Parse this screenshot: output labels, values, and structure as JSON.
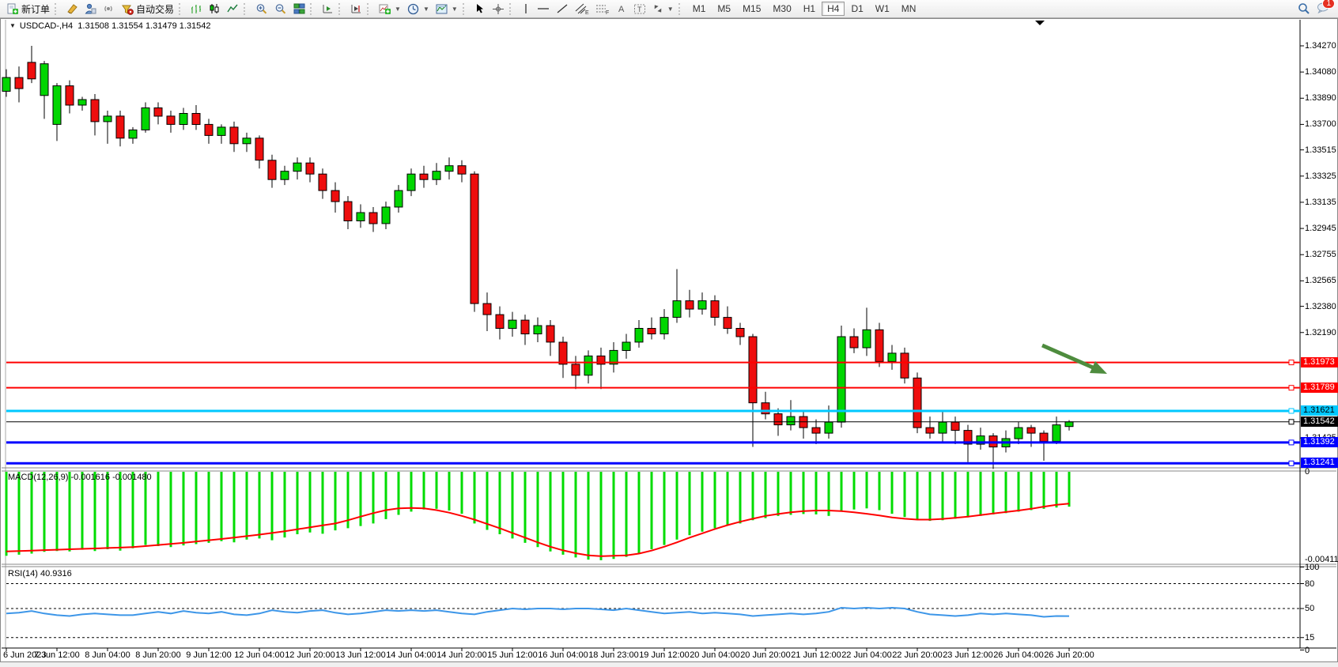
{
  "toolbar": {
    "new_order_label": "新订单",
    "algo_trading_label": "自动交易",
    "timeframes": {
      "items": [
        "M1",
        "M5",
        "M15",
        "M30",
        "H1",
        "H4",
        "D1",
        "W1",
        "MN"
      ],
      "active": "H4"
    },
    "notification_count": "1"
  },
  "chart": {
    "title": {
      "symbol_period": "USDCAD-,H4",
      "open": "1.31508",
      "high": "1.31554",
      "low": "1.31479",
      "close": "1.31542"
    },
    "price_axis_ticks": [
      "1.34270",
      "1.34080",
      "1.33890",
      "1.33700",
      "1.33515",
      "1.33325",
      "1.33135",
      "1.32945",
      "1.32755",
      "1.32565",
      "1.32380",
      "1.32190",
      "1.31425"
    ],
    "levels": [
      {
        "label": "1.31973",
        "price": 1.31973,
        "color": "#ff0000",
        "text_color": "#ffffff",
        "width": 2
      },
      {
        "label": "1.31789",
        "price": 1.31789,
        "color": "#ff0000",
        "text_color": "#ffffff",
        "width": 2
      },
      {
        "label": "1.31621",
        "price": 1.31621,
        "color": "#00c8ff",
        "text_color": "#000000",
        "width": 3
      },
      {
        "label": "1.31542",
        "price": 1.31542,
        "color": "#000000",
        "text_color": "#ffffff",
        "width": 1
      },
      {
        "label": "1.31392",
        "price": 1.31392,
        "color": "#0000ff",
        "text_color": "#ffffff",
        "width": 3
      },
      {
        "label": "1.31241",
        "price": 1.31241,
        "color": "#0000ff",
        "text_color": "#ffffff",
        "width": 3
      }
    ],
    "date_axis": [
      "6 Jun 2023",
      "7 Jun 12:00",
      "8 Jun 04:00",
      "8 Jun 20:00",
      "9 Jun 12:00",
      "12 Jun 04:00",
      "12 Jun 20:00",
      "13 Jun 12:00",
      "14 Jun 04:00",
      "14 Jun 20:00",
      "15 Jun 12:00",
      "16 Jun 04:00",
      "18 Jun 23:00",
      "19 Jun 12:00",
      "20 Jun 04:00",
      "20 Jun 20:00",
      "21 Jun 12:00",
      "22 Jun 04:00",
      "22 Jun 20:00",
      "23 Jun 12:00",
      "26 Jun 04:00",
      "26 Jun 20:00"
    ],
    "colors": {
      "bull": "#00d600",
      "bear": "#ee0e0e",
      "wick": "#000000",
      "macd_hist": "#00dc00",
      "macd_signal": "#ff0000",
      "rsi_line": "#3d96e8",
      "arrow": "#4e8c3e"
    }
  },
  "macd": {
    "label": "MACD(12,26,9)",
    "main_value": "-0.001616",
    "signal_value": "-0.001480",
    "axis_max": "0",
    "axis_min": "-0.004113"
  },
  "rsi": {
    "label": "RSI(14)",
    "value": "40.9316",
    "level_labels": [
      "100",
      "80",
      "50",
      "15",
      "0"
    ],
    "levels": [
      100,
      80,
      50,
      15,
      0
    ],
    "dashed_levels": [
      80,
      50,
      15
    ]
  },
  "chart_data": {
    "type": "candlestick",
    "symbol": "USDCAD",
    "period": "H4",
    "price_range_visible": [
      1.312,
      1.3446
    ],
    "candles_ohlc": [
      [
        1.3394,
        1.341,
        1.339,
        1.3404
      ],
      [
        1.3404,
        1.3412,
        1.3386,
        1.3396
      ],
      [
        1.3415,
        1.3427,
        1.34,
        1.3403
      ],
      [
        1.3391,
        1.3416,
        1.3374,
        1.3414
      ],
      [
        1.337,
        1.34,
        1.3358,
        1.3398
      ],
      [
        1.3398,
        1.3402,
        1.3378,
        1.3384
      ],
      [
        1.3384,
        1.339,
        1.338,
        1.3388
      ],
      [
        1.3388,
        1.3392,
        1.3362,
        1.3372
      ],
      [
        1.3372,
        1.338,
        1.3356,
        1.3376
      ],
      [
        1.3376,
        1.338,
        1.3354,
        1.336
      ],
      [
        1.336,
        1.3368,
        1.3356,
        1.3366
      ],
      [
        1.3366,
        1.3386,
        1.3364,
        1.3382
      ],
      [
        1.3382,
        1.3386,
        1.337,
        1.3376
      ],
      [
        1.3376,
        1.338,
        1.3364,
        1.337
      ],
      [
        1.337,
        1.3382,
        1.3366,
        1.3378
      ],
      [
        1.3378,
        1.3384,
        1.3366,
        1.337
      ],
      [
        1.337,
        1.3374,
        1.3356,
        1.3362
      ],
      [
        1.3362,
        1.337,
        1.3356,
        1.3368
      ],
      [
        1.3368,
        1.3372,
        1.335,
        1.3356
      ],
      [
        1.3356,
        1.3364,
        1.335,
        1.336
      ],
      [
        1.336,
        1.3362,
        1.3338,
        1.3344
      ],
      [
        1.3344,
        1.3348,
        1.3324,
        1.333
      ],
      [
        1.333,
        1.334,
        1.3326,
        1.3336
      ],
      [
        1.3336,
        1.3346,
        1.333,
        1.3342
      ],
      [
        1.3342,
        1.3346,
        1.3328,
        1.3334
      ],
      [
        1.3334,
        1.3338,
        1.3316,
        1.3322
      ],
      [
        1.3322,
        1.3328,
        1.3306,
        1.3314
      ],
      [
        1.3314,
        1.3318,
        1.3294,
        1.33
      ],
      [
        1.33,
        1.3312,
        1.3295,
        1.3306
      ],
      [
        1.3306,
        1.331,
        1.3292,
        1.3298
      ],
      [
        1.3298,
        1.3314,
        1.3294,
        1.331
      ],
      [
        1.331,
        1.3326,
        1.3306,
        1.3322
      ],
      [
        1.3322,
        1.3338,
        1.3318,
        1.3334
      ],
      [
        1.3334,
        1.334,
        1.3324,
        1.333
      ],
      [
        1.333,
        1.3342,
        1.3326,
        1.3336
      ],
      [
        1.3336,
        1.3346,
        1.333,
        1.334
      ],
      [
        1.334,
        1.3344,
        1.3328,
        1.3334
      ],
      [
        1.3334,
        1.3336,
        1.3234,
        1.324
      ],
      [
        1.324,
        1.3248,
        1.322,
        1.3232
      ],
      [
        1.3232,
        1.3238,
        1.3214,
        1.3222
      ],
      [
        1.3222,
        1.3234,
        1.3216,
        1.3228
      ],
      [
        1.3228,
        1.3232,
        1.321,
        1.3218
      ],
      [
        1.3218,
        1.323,
        1.3212,
        1.3224
      ],
      [
        1.3224,
        1.3228,
        1.3202,
        1.3212
      ],
      [
        1.3212,
        1.3216,
        1.3186,
        1.3196
      ],
      [
        1.3196,
        1.3202,
        1.3178,
        1.3188
      ],
      [
        1.3188,
        1.3206,
        1.3182,
        1.3202
      ],
      [
        1.3202,
        1.3208,
        1.3178,
        1.3196
      ],
      [
        1.3196,
        1.3212,
        1.319,
        1.3206
      ],
      [
        1.3206,
        1.3218,
        1.32,
        1.3212
      ],
      [
        1.3212,
        1.3228,
        1.3208,
        1.3222
      ],
      [
        1.3222,
        1.323,
        1.3214,
        1.3218
      ],
      [
        1.3218,
        1.3236,
        1.3214,
        1.323
      ],
      [
        1.323,
        1.3265,
        1.3226,
        1.3242
      ],
      [
        1.3242,
        1.325,
        1.323,
        1.3236
      ],
      [
        1.3236,
        1.3248,
        1.3232,
        1.3242
      ],
      [
        1.3242,
        1.3246,
        1.3224,
        1.323
      ],
      [
        1.323,
        1.3238,
        1.3218,
        1.3222
      ],
      [
        1.3222,
        1.3226,
        1.321,
        1.3216
      ],
      [
        1.3216,
        1.3218,
        1.3136,
        1.3168
      ],
      [
        1.3168,
        1.3176,
        1.3156,
        1.316
      ],
      [
        1.316,
        1.3164,
        1.3144,
        1.3152
      ],
      [
        1.3152,
        1.317,
        1.3148,
        1.3158
      ],
      [
        1.3158,
        1.3162,
        1.3142,
        1.315
      ],
      [
        1.315,
        1.3156,
        1.3138,
        1.3146
      ],
      [
        1.3146,
        1.3166,
        1.3142,
        1.3154
      ],
      [
        1.3154,
        1.3224,
        1.315,
        1.3216
      ],
      [
        1.3216,
        1.3222,
        1.3204,
        1.3208
      ],
      [
        1.3208,
        1.3237,
        1.3202,
        1.3221
      ],
      [
        1.3221,
        1.3226,
        1.3194,
        1.3198
      ],
      [
        1.3198,
        1.321,
        1.3192,
        1.3204
      ],
      [
        1.3204,
        1.3208,
        1.3182,
        1.3186
      ],
      [
        1.3186,
        1.319,
        1.3146,
        1.315
      ],
      [
        1.315,
        1.3158,
        1.3142,
        1.3146
      ],
      [
        1.3146,
        1.3162,
        1.314,
        1.3154
      ],
      [
        1.3154,
        1.3158,
        1.3138,
        1.3148
      ],
      [
        1.3148,
        1.3152,
        1.3125,
        1.3138
      ],
      [
        1.3138,
        1.315,
        1.3134,
        1.3144
      ],
      [
        1.3144,
        1.3146,
        1.312,
        1.3136
      ],
      [
        1.3136,
        1.3148,
        1.3132,
        1.3142
      ],
      [
        1.3142,
        1.3154,
        1.3138,
        1.315
      ],
      [
        1.315,
        1.3152,
        1.3136,
        1.3146
      ],
      [
        1.3146,
        1.3148,
        1.3126,
        1.314
      ],
      [
        1.314,
        1.3158,
        1.3138,
        1.3152
      ],
      [
        1.31508,
        1.31554,
        1.31479,
        1.31542
      ]
    ],
    "macd_hist_1e5": [
      -390,
      -385,
      -380,
      -372,
      -368,
      -370,
      -362,
      -368,
      -360,
      -366,
      -355,
      -340,
      -345,
      -350,
      -342,
      -336,
      -330,
      -322,
      -328,
      -315,
      -310,
      -318,
      -305,
      -290,
      -282,
      -288,
      -272,
      -262,
      -252,
      -240,
      -220,
      -200,
      -185,
      -175,
      -172,
      -180,
      -195,
      -240,
      -270,
      -290,
      -310,
      -330,
      -350,
      -370,
      -385,
      -398,
      -408,
      -411,
      -405,
      -395,
      -380,
      -360,
      -340,
      -315,
      -295,
      -278,
      -262,
      -250,
      -240,
      -225,
      -215,
      -205,
      -200,
      -196,
      -198,
      -205,
      -185,
      -175,
      -170,
      -178,
      -195,
      -210,
      -222,
      -228,
      -225,
      -218,
      -212,
      -205,
      -198,
      -192,
      -185,
      -178,
      -172,
      -166,
      -162
    ],
    "macd_signal_1e5": [
      -370,
      -368,
      -366,
      -364,
      -362,
      -360,
      -358,
      -356,
      -354,
      -352,
      -350,
      -345,
      -340,
      -335,
      -330,
      -324,
      -318,
      -312,
      -306,
      -299,
      -292,
      -284,
      -276,
      -267,
      -258,
      -249,
      -240,
      -225,
      -208,
      -192,
      -178,
      -170,
      -168,
      -170,
      -178,
      -190,
      -205,
      -222,
      -242,
      -262,
      -284,
      -306,
      -328,
      -348,
      -365,
      -378,
      -388,
      -392,
      -390,
      -388,
      -380,
      -366,
      -348,
      -328,
      -306,
      -286,
      -266,
      -248,
      -232,
      -218,
      -205,
      -196,
      -188,
      -183,
      -180,
      -180,
      -183,
      -188,
      -195,
      -203,
      -212,
      -218,
      -222,
      -222,
      -219,
      -214,
      -208,
      -201,
      -194,
      -187,
      -180,
      -172,
      -162,
      -153,
      -148
    ],
    "rsi_values": [
      44,
      45,
      47,
      44,
      42,
      41,
      43,
      44,
      43,
      42,
      42,
      44,
      46,
      44,
      47,
      45,
      44,
      46,
      43,
      42,
      44,
      48,
      46,
      45,
      47,
      48,
      45,
      43,
      44,
      46,
      48,
      47,
      48,
      47,
      48,
      46,
      44,
      43,
      46,
      48,
      50,
      49,
      50,
      50,
      49,
      50,
      50,
      49,
      48,
      50,
      48,
      46,
      44,
      45,
      46,
      44,
      45,
      44,
      43,
      41,
      42,
      43,
      44,
      43,
      44,
      46,
      51,
      50,
      51,
      50,
      51,
      50,
      46,
      43,
      42,
      41,
      42,
      44,
      43,
      44,
      43,
      42,
      40,
      41,
      40.9
    ]
  }
}
